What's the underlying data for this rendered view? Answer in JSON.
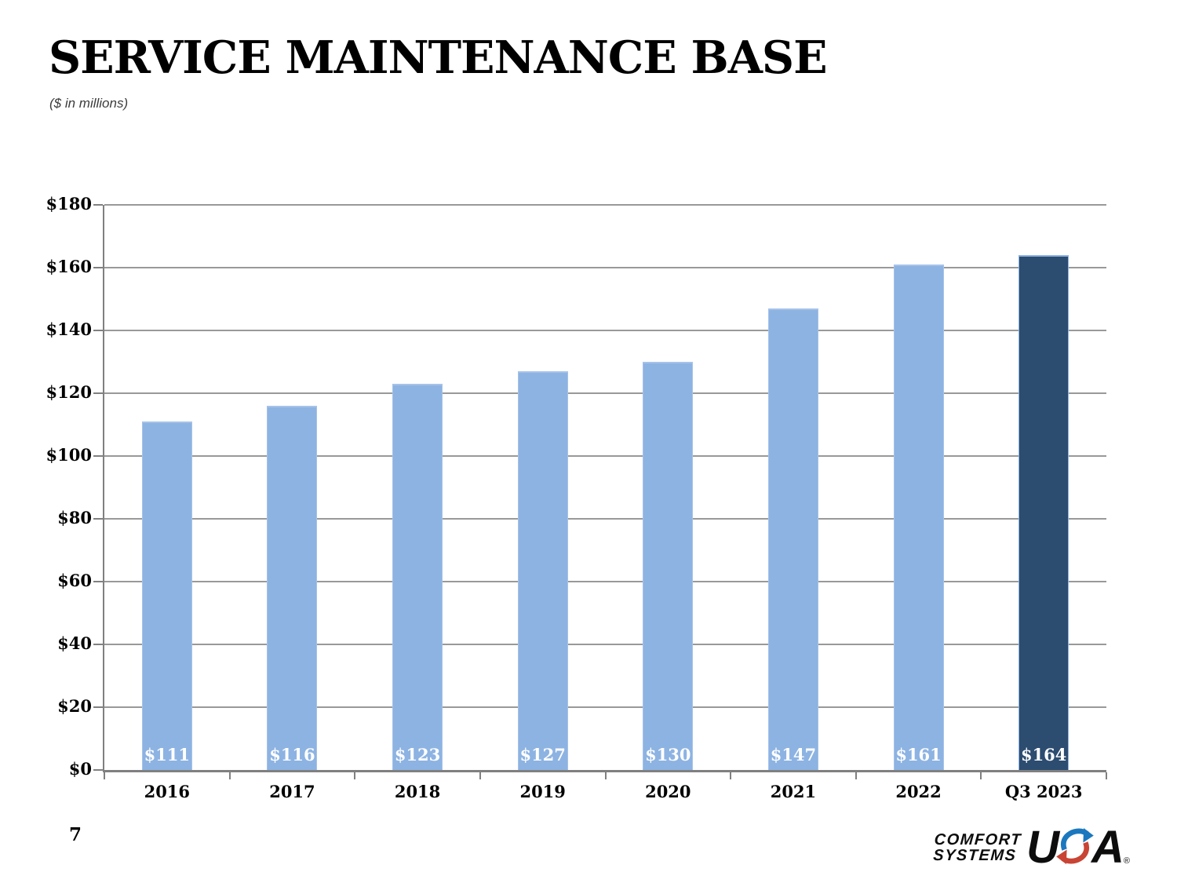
{
  "slide": {
    "title": "SERVICE MAINTENANCE BASE",
    "subtitle": "($ in millions)",
    "page_number": "7"
  },
  "chart_data": {
    "type": "bar",
    "title": "SERVICE MAINTENANCE BASE",
    "units": "$ in millions",
    "categories": [
      "2016",
      "2017",
      "2018",
      "2019",
      "2020",
      "2021",
      "2022",
      "Q3 2023"
    ],
    "values": [
      111,
      116,
      123,
      127,
      130,
      147,
      161,
      164
    ],
    "bar_labels": [
      "$111",
      "$116",
      "$123",
      "$127",
      "$130",
      "$147",
      "$161",
      "$164"
    ],
    "y_tick_labels": [
      "$0",
      "$20",
      "$40",
      "$60",
      "$80",
      "$100",
      "$120",
      "$140",
      "$160",
      "$180"
    ],
    "ylim": [
      0,
      180
    ],
    "y_step": 20,
    "grid": true,
    "legend": "none",
    "colors": {
      "bar": "#8DB3E2",
      "bar_border": "#A6C2E9",
      "last_bar": "#2C4C70",
      "last_bar_border": "#8DB3E2",
      "bar_label": "#FFFFFF",
      "gridline": "#999999",
      "axis": "#808080",
      "text": "#000000"
    }
  },
  "logo": {
    "line1": "COMFORT",
    "line2": "SYSTEMS",
    "usa_u": "U",
    "usa_a": "A",
    "registered": "®",
    "blue": "#1B78BE",
    "red": "#C94434"
  }
}
